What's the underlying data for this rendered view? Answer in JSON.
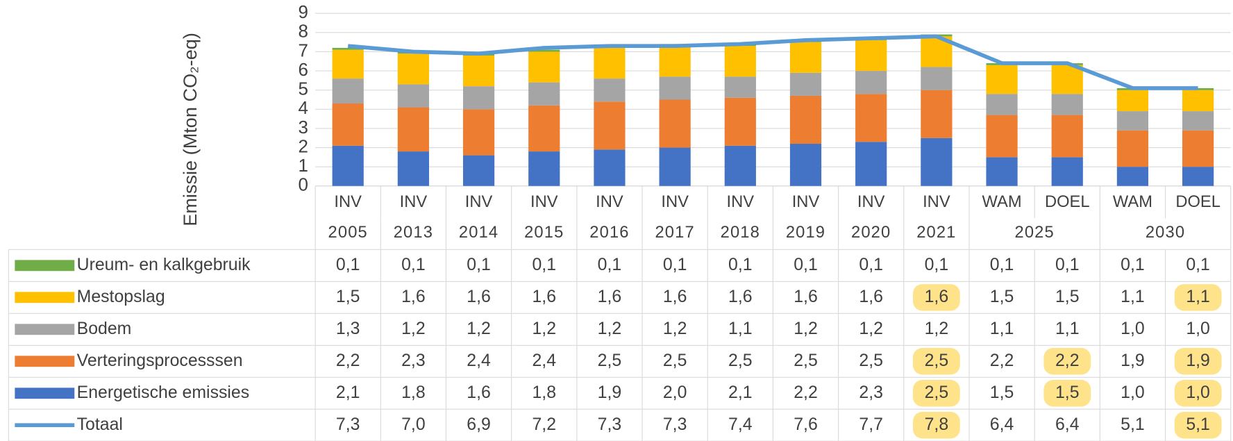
{
  "chart_data": {
    "type": "bar",
    "stacked": true,
    "ylabel": "Emissie (Mton CO₂-eq)",
    "ylim": [
      0,
      9
    ],
    "yticks": [
      0,
      1,
      2,
      3,
      4,
      5,
      6,
      7,
      8,
      9
    ],
    "grid": true,
    "categories": [
      "INV",
      "INV",
      "INV",
      "INV",
      "INV",
      "INV",
      "INV",
      "INV",
      "INV",
      "INV",
      "WAM",
      "DOEL",
      "WAM",
      "DOEL"
    ],
    "categories2": [
      "2005",
      "2013",
      "2014",
      "2015",
      "2016",
      "2017",
      "2018",
      "2019",
      "2020",
      "2021",
      "2025",
      null,
      "2030",
      null
    ],
    "series": [
      {
        "name": "Ureum- en kalkgebruik",
        "color": "#70ad47",
        "values": [
          0.1,
          0.1,
          0.1,
          0.1,
          0.1,
          0.1,
          0.1,
          0.1,
          0.1,
          0.1,
          0.1,
          0.1,
          0.1,
          0.1
        ],
        "value_labels": [
          "0,1",
          "0,1",
          "0,1",
          "0,1",
          "0,1",
          "0,1",
          "0,1",
          "0,1",
          "0,1",
          "0,1",
          "0,1",
          "0,1",
          "0,1",
          "0,1"
        ],
        "highlights": []
      },
      {
        "name": "Mestopslag",
        "color": "#ffc000",
        "values": [
          1.5,
          1.6,
          1.6,
          1.6,
          1.6,
          1.6,
          1.6,
          1.6,
          1.6,
          1.6,
          1.5,
          1.5,
          1.1,
          1.1
        ],
        "value_labels": [
          "1,5",
          "1,6",
          "1,6",
          "1,6",
          "1,6",
          "1,6",
          "1,6",
          "1,6",
          "1,6",
          "1,6",
          "1,5",
          "1,5",
          "1,1",
          "1,1"
        ],
        "highlights": [
          9,
          13
        ]
      },
      {
        "name": "Bodem",
        "color": "#a5a5a5",
        "values": [
          1.3,
          1.2,
          1.2,
          1.2,
          1.2,
          1.2,
          1.1,
          1.2,
          1.2,
          1.2,
          1.1,
          1.1,
          1.0,
          1.0
        ],
        "value_labels": [
          "1,3",
          "1,2",
          "1,2",
          "1,2",
          "1,2",
          "1,2",
          "1,1",
          "1,2",
          "1,2",
          "1,2",
          "1,1",
          "1,1",
          "1,0",
          "1,0"
        ],
        "highlights": []
      },
      {
        "name": "Verteringsprocesssen",
        "color": "#ed7d31",
        "values": [
          2.2,
          2.3,
          2.4,
          2.4,
          2.5,
          2.5,
          2.5,
          2.5,
          2.5,
          2.5,
          2.2,
          2.2,
          1.9,
          1.9
        ],
        "value_labels": [
          "2,2",
          "2,3",
          "2,4",
          "2,4",
          "2,5",
          "2,5",
          "2,5",
          "2,5",
          "2,5",
          "2,5",
          "2,2",
          "2,2",
          "1,9",
          "1,9"
        ],
        "highlights": [
          9,
          11,
          13
        ]
      },
      {
        "name": "Energetische emissies",
        "color": "#4472c4",
        "values": [
          2.1,
          1.8,
          1.6,
          1.8,
          1.9,
          2.0,
          2.1,
          2.2,
          2.3,
          2.5,
          1.5,
          1.5,
          1.0,
          1.0
        ],
        "value_labels": [
          "2,1",
          "1,8",
          "1,6",
          "1,8",
          "1,9",
          "2,0",
          "2,1",
          "2,2",
          "2,3",
          "2,5",
          "1,5",
          "1,5",
          "1,0",
          "1,0"
        ],
        "highlights": [
          9,
          11,
          13
        ]
      },
      {
        "name": "Totaal",
        "type": "line",
        "color": "#5b9bd5",
        "values": [
          7.3,
          7.0,
          6.9,
          7.2,
          7.3,
          7.3,
          7.4,
          7.6,
          7.7,
          7.8,
          6.4,
          6.4,
          5.1,
          5.1
        ],
        "value_labels": [
          "7,3",
          "7,0",
          "6,9",
          "7,2",
          "7,3",
          "7,3",
          "7,4",
          "7,6",
          "7,7",
          "7,8",
          "6,4",
          "6,4",
          "5,1",
          "5,1"
        ],
        "highlights": [
          9,
          13
        ]
      }
    ],
    "highlight_color": "#ffe38a"
  }
}
